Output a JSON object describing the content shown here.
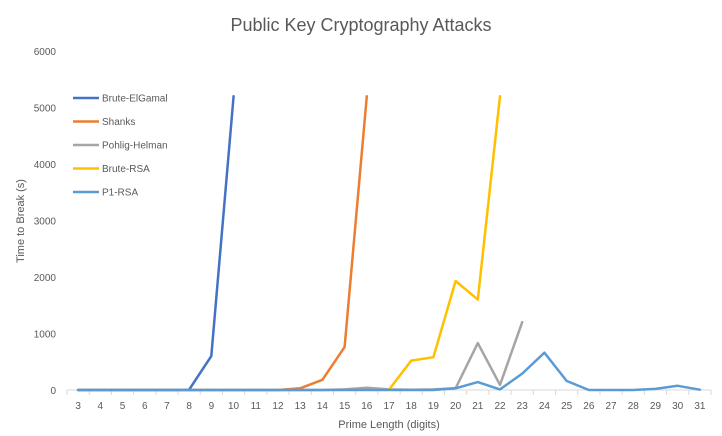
{
  "chart_data": {
    "type": "line",
    "title": "Public Key Cryptography Attacks",
    "xlabel": "Prime Length  (digits)",
    "ylabel": "Time to Break (s)",
    "ylim": [
      0,
      6000
    ],
    "yticks": [
      "0",
      "1000",
      "2000",
      "3000",
      "4000",
      "5000",
      "6000"
    ],
    "x": [
      3,
      4,
      5,
      6,
      7,
      8,
      9,
      10,
      11,
      12,
      13,
      14,
      15,
      16,
      17,
      18,
      19,
      20,
      21,
      22,
      23,
      24,
      25,
      26,
      27,
      28,
      29,
      30,
      31
    ],
    "grid": false,
    "legend_position": "left",
    "series": [
      {
        "name": "Brute-ElGamal",
        "color": "#4472C4",
        "points": [
          [
            3,
            0
          ],
          [
            4,
            0
          ],
          [
            5,
            0
          ],
          [
            6,
            0
          ],
          [
            7,
            0
          ],
          [
            8,
            5
          ],
          [
            9,
            600
          ],
          [
            10,
            5200
          ]
        ]
      },
      {
        "name": "Shanks",
        "color": "#ED7D31",
        "points": [
          [
            3,
            0
          ],
          [
            4,
            0
          ],
          [
            5,
            0
          ],
          [
            6,
            0
          ],
          [
            7,
            0
          ],
          [
            8,
            0
          ],
          [
            9,
            0
          ],
          [
            10,
            0
          ],
          [
            11,
            0
          ],
          [
            12,
            0
          ],
          [
            13,
            30
          ],
          [
            14,
            180
          ],
          [
            15,
            760
          ],
          [
            16,
            5200
          ]
        ]
      },
      {
        "name": "Pohlig-Helman",
        "color": "#A5A5A5",
        "points": [
          [
            3,
            0
          ],
          [
            4,
            0
          ],
          [
            5,
            0
          ],
          [
            6,
            0
          ],
          [
            7,
            0
          ],
          [
            8,
            0
          ],
          [
            9,
            0
          ],
          [
            10,
            0
          ],
          [
            11,
            0
          ],
          [
            12,
            0
          ],
          [
            13,
            0
          ],
          [
            14,
            0
          ],
          [
            15,
            10
          ],
          [
            16,
            40
          ],
          [
            17,
            10
          ],
          [
            18,
            5
          ],
          [
            19,
            10
          ],
          [
            20,
            30
          ],
          [
            21,
            830
          ],
          [
            22,
            90
          ],
          [
            23,
            1200
          ]
        ]
      },
      {
        "name": "Brute-RSA",
        "color": "#FFC000",
        "points": [
          [
            17,
            5
          ],
          [
            18,
            520
          ],
          [
            19,
            580
          ],
          [
            20,
            1930
          ],
          [
            21,
            1600
          ],
          [
            22,
            5200
          ]
        ]
      },
      {
        "name": "P1-RSA",
        "color": "#5B9BD5",
        "points": [
          [
            3,
            0
          ],
          [
            4,
            0
          ],
          [
            5,
            0
          ],
          [
            6,
            0
          ],
          [
            7,
            0
          ],
          [
            8,
            0
          ],
          [
            9,
            0
          ],
          [
            10,
            0
          ],
          [
            11,
            0
          ],
          [
            12,
            0
          ],
          [
            13,
            0
          ],
          [
            14,
            0
          ],
          [
            15,
            0
          ],
          [
            16,
            0
          ],
          [
            17,
            0
          ],
          [
            18,
            0
          ],
          [
            19,
            0
          ],
          [
            20,
            30
          ],
          [
            21,
            140
          ],
          [
            22,
            10
          ],
          [
            23,
            290
          ],
          [
            24,
            660
          ],
          [
            25,
            160
          ],
          [
            26,
            0
          ],
          [
            27,
            0
          ],
          [
            28,
            0
          ],
          [
            29,
            20
          ],
          [
            30,
            75
          ],
          [
            31,
            5
          ]
        ]
      }
    ]
  }
}
